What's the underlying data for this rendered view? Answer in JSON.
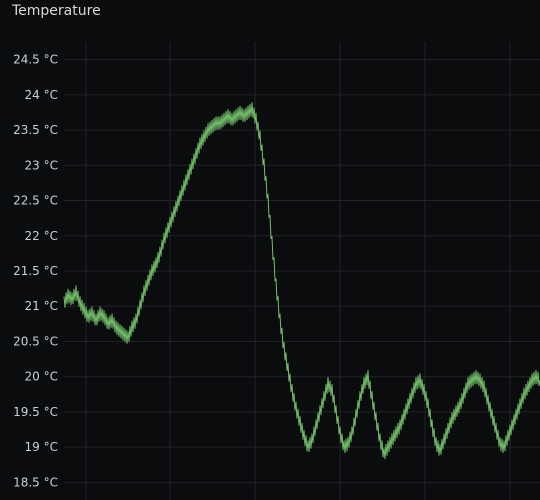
{
  "panel": {
    "title": "Temperature"
  },
  "colors": {
    "background": "#0b0c0e",
    "grid": "#202226",
    "series": "#73bf69",
    "text": "#c7d0d9"
  },
  "chart_data": {
    "type": "line",
    "title": "Temperature",
    "xlabel": "",
    "ylabel": "",
    "y_unit": "°C",
    "ylim": [
      18.25,
      24.75
    ],
    "yticks": [
      "24.5 °C",
      "24 °C",
      "23.5 °C",
      "23 °C",
      "22.5 °C",
      "22 °C",
      "21.5 °C",
      "21 °C",
      "20.5 °C",
      "20 °C",
      "19.5 °C",
      "19 °C",
      "18.5 °C"
    ],
    "ytick_values": [
      24.5,
      24,
      23.5,
      23,
      22.5,
      22,
      21.5,
      21,
      20.5,
      20,
      19.5,
      19,
      18.5
    ],
    "x_grid_count": 6,
    "grid": true,
    "legend": "none",
    "series": [
      {
        "x": [
          0,
          4,
          8,
          12,
          16,
          20,
          24,
          28,
          32,
          36,
          40,
          44,
          48,
          52,
          56,
          60,
          64,
          68,
          72,
          76,
          80,
          84,
          88,
          92,
          96,
          100,
          104,
          108,
          112,
          116,
          120,
          124,
          128,
          132,
          136,
          140,
          144,
          148,
          152,
          156,
          160,
          164,
          168,
          172,
          176,
          180,
          184,
          188,
          192,
          196,
          200,
          204,
          208,
          212,
          216,
          220,
          224,
          228,
          232,
          236,
          240,
          244,
          248,
          252,
          256,
          260,
          264,
          268,
          272,
          276,
          280,
          284,
          288,
          292,
          296,
          300,
          304,
          308,
          312,
          316,
          320,
          324,
          328,
          332,
          336,
          340,
          344,
          348,
          352,
          356,
          360,
          364,
          368,
          372,
          376,
          380,
          384,
          388,
          392,
          396,
          400,
          404,
          408,
          412,
          416,
          420,
          424,
          428,
          432,
          436,
          440,
          444,
          448,
          452,
          456,
          460,
          464,
          468,
          472,
          476
        ],
        "values": [
          21.05,
          21.15,
          21.1,
          21.2,
          21.05,
          20.95,
          20.85,
          20.9,
          20.8,
          20.9,
          20.85,
          20.75,
          20.8,
          20.7,
          20.65,
          20.6,
          20.55,
          20.7,
          20.8,
          21.0,
          21.2,
          21.35,
          21.5,
          21.6,
          21.75,
          21.95,
          22.1,
          22.25,
          22.4,
          22.55,
          22.7,
          22.85,
          23.0,
          23.15,
          23.3,
          23.4,
          23.5,
          23.55,
          23.6,
          23.6,
          23.65,
          23.7,
          23.65,
          23.7,
          23.75,
          23.7,
          23.75,
          23.8,
          23.65,
          23.4,
          23.0,
          22.5,
          21.9,
          21.3,
          20.8,
          20.4,
          20.1,
          19.8,
          19.55,
          19.35,
          19.15,
          19.0,
          19.1,
          19.3,
          19.5,
          19.7,
          19.9,
          19.8,
          19.5,
          19.2,
          19.0,
          19.05,
          19.2,
          19.45,
          19.7,
          19.9,
          20.0,
          19.7,
          19.4,
          19.1,
          18.9,
          19.0,
          19.1,
          19.2,
          19.3,
          19.45,
          19.6,
          19.75,
          19.9,
          19.95,
          19.8,
          19.6,
          19.3,
          19.05,
          18.95,
          19.1,
          19.25,
          19.4,
          19.5,
          19.6,
          19.75,
          19.9,
          19.95,
          20.0,
          19.95,
          19.85,
          19.65,
          19.45,
          19.25,
          19.05,
          19.0,
          19.15,
          19.3,
          19.45,
          19.6,
          19.75,
          19.85,
          19.95,
          20.0,
          19.95
        ]
      }
    ]
  }
}
